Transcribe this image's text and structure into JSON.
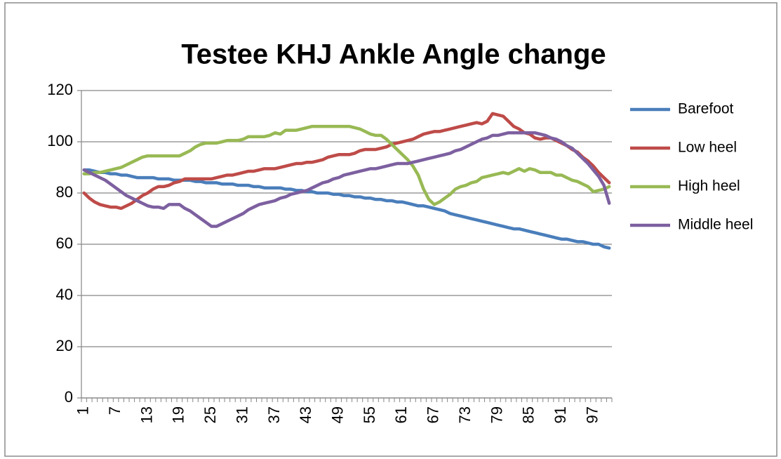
{
  "chart_data": {
    "type": "line",
    "title": "Testee KHJ Ankle Angle change",
    "categories": [
      1,
      null,
      null,
      null,
      null,
      null,
      7,
      null,
      null,
      null,
      null,
      null,
      13,
      null,
      null,
      null,
      null,
      null,
      19,
      null,
      null,
      null,
      null,
      null,
      25,
      null,
      null,
      null,
      null,
      null,
      31,
      null,
      null,
      null,
      null,
      null,
      37,
      null,
      null,
      null,
      null,
      null,
      43,
      null,
      null,
      null,
      null,
      null,
      49,
      null,
      null,
      null,
      null,
      null,
      55,
      null,
      null,
      null,
      null,
      null,
      61,
      null,
      null,
      null,
      null,
      null,
      67,
      null,
      null,
      null,
      null,
      null,
      73,
      null,
      null,
      null,
      null,
      null,
      79,
      null,
      null,
      null,
      null,
      null,
      85,
      null,
      null,
      null,
      null,
      null,
      91,
      null,
      null,
      null,
      null,
      null,
      97,
      null,
      null,
      null
    ],
    "series": [
      {
        "name": "Barefoot",
        "color": "#4a7ebb",
        "values": [
          89,
          89,
          88.5,
          88,
          88,
          87.5,
          87.5,
          87,
          87,
          86.5,
          86,
          86,
          86,
          86,
          85.5,
          85.5,
          85.5,
          85,
          85,
          85,
          85,
          84.5,
          84.5,
          84,
          84,
          84,
          83.5,
          83.5,
          83.5,
          83,
          83,
          83,
          82.5,
          82.5,
          82,
          82,
          82,
          82,
          81.5,
          81.5,
          81,
          81,
          80.5,
          80.5,
          80,
          80,
          80,
          79.5,
          79.5,
          79,
          79,
          78.5,
          78.5,
          78,
          78,
          77.5,
          77.5,
          77,
          77,
          76.5,
          76.5,
          76,
          75.5,
          75,
          75,
          74.5,
          74,
          73.5,
          73,
          72,
          71.5,
          71,
          70.5,
          70,
          69.5,
          69,
          68.5,
          68,
          67.5,
          67,
          66.5,
          66,
          66,
          65.5,
          65,
          64.5,
          64,
          63.5,
          63,
          62.5,
          62,
          62,
          61.5,
          61,
          61,
          60.5,
          60,
          60,
          59,
          58.5
        ]
      },
      {
        "name": "Low heel",
        "color": "#be4b48",
        "values": [
          80,
          78,
          76.5,
          75.5,
          75,
          74.5,
          74.5,
          74,
          75,
          76,
          77.5,
          79,
          80,
          81.5,
          82.5,
          82.5,
          83,
          84,
          84.5,
          85.5,
          85.5,
          85.5,
          85.5,
          85.5,
          85.5,
          86,
          86.5,
          87,
          87,
          87.5,
          88,
          88.5,
          88.5,
          89,
          89.5,
          89.5,
          89.5,
          90,
          90.5,
          91,
          91.5,
          91.5,
          92,
          92,
          92.5,
          93,
          94,
          94.5,
          95,
          95,
          95,
          95.5,
          96.5,
          97,
          97,
          97,
          97.5,
          98,
          99,
          99.5,
          100,
          100.5,
          101,
          102,
          103,
          103.5,
          104,
          104,
          104.5,
          105,
          105.5,
          106,
          106.5,
          107,
          107.5,
          107,
          108,
          111,
          110.5,
          110,
          108,
          106,
          105,
          103.5,
          103,
          101.5,
          101,
          101.5,
          101.5,
          100.5,
          99.5,
          98.5,
          97,
          96,
          94,
          92.5,
          90.5,
          88,
          86,
          84
        ]
      },
      {
        "name": "High heel",
        "color": "#98b954",
        "values": [
          87.5,
          87.5,
          88,
          88,
          88.5,
          89,
          89.5,
          90,
          91,
          92,
          93,
          94,
          94.5,
          94.5,
          94.5,
          94.5,
          94.5,
          94.5,
          94.5,
          95.5,
          96.5,
          98,
          99,
          99.5,
          99.5,
          99.5,
          100,
          100.5,
          100.5,
          100.5,
          101,
          102,
          102,
          102,
          102,
          102.5,
          103.5,
          103,
          104.5,
          104.5,
          104.5,
          105,
          105.5,
          106,
          106,
          106,
          106,
          106,
          106,
          106,
          106,
          105.5,
          105,
          104,
          103,
          102.5,
          102.5,
          101,
          99,
          97,
          95,
          93,
          90.5,
          87,
          81.5,
          77.5,
          75.5,
          76.5,
          78,
          79.5,
          81.5,
          82.5,
          83,
          84,
          84.5,
          86,
          86.5,
          87,
          87.5,
          88,
          87.5,
          88.5,
          89.5,
          88.5,
          89.5,
          89,
          88,
          88,
          88,
          87,
          87,
          86,
          85,
          84.5,
          83.5,
          82.5,
          80.5,
          81,
          81.5,
          82.5
        ]
      },
      {
        "name": "Middle heel",
        "color": "#7d60a0",
        "values": [
          89,
          88,
          87,
          86,
          85,
          83.5,
          82,
          80.5,
          79,
          78,
          77,
          76,
          75,
          74.5,
          74.5,
          74,
          75.5,
          75.5,
          75.5,
          74,
          73,
          71.5,
          70,
          68.5,
          67,
          67,
          68,
          69,
          70,
          71,
          72,
          73.5,
          74.5,
          75.5,
          76,
          76.5,
          77,
          78,
          78.5,
          79.5,
          80,
          80.5,
          81,
          82,
          83,
          84,
          84.5,
          85.5,
          86,
          87,
          87.5,
          88,
          88.5,
          89,
          89.5,
          89.5,
          90,
          90.5,
          91,
          91.5,
          91.5,
          91.5,
          92,
          92.5,
          93,
          93.5,
          94,
          94.5,
          95,
          95.5,
          96.5,
          97,
          98,
          99,
          100,
          101,
          101.5,
          102.5,
          102.5,
          103,
          103.5,
          103.5,
          103.5,
          103.5,
          103.5,
          103.5,
          103,
          102.5,
          101.5,
          101,
          100,
          98.5,
          97.5,
          95.5,
          93.5,
          91.5,
          89,
          86.5,
          83,
          76
        ]
      }
    ],
    "ylim": [
      0,
      120
    ],
    "yticks": [
      0,
      20,
      40,
      60,
      80,
      100,
      120
    ],
    "grid": true,
    "legend": "right"
  }
}
